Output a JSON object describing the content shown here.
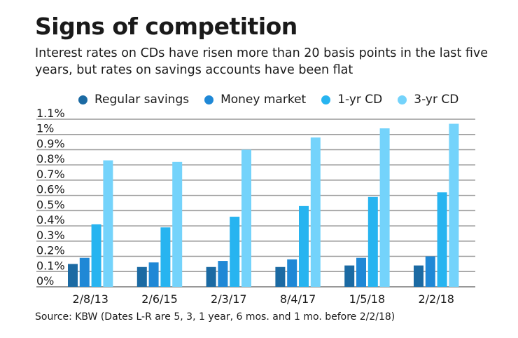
{
  "chart_data": {
    "type": "bar",
    "title": "Signs of competition",
    "subtitle": "Interest rates on CDs have risen more than 20 basis points in the last five years, but rates on savings accounts have been flat",
    "categories": [
      "2/8/13",
      "2/6/15",
      "2/3/17",
      "8/4/17",
      "1/5/18",
      "2/2/18"
    ],
    "series": [
      {
        "name": "Regular savings",
        "color": "#1b6aa3",
        "values": [
          0.15,
          0.13,
          0.13,
          0.13,
          0.14,
          0.14
        ]
      },
      {
        "name": "Money market",
        "color": "#1f88d6",
        "values": [
          0.19,
          0.16,
          0.17,
          0.18,
          0.19,
          0.2
        ]
      },
      {
        "name": "1-yr CD",
        "color": "#27b4f0",
        "values": [
          0.41,
          0.39,
          0.46,
          0.53,
          0.59,
          0.62
        ]
      },
      {
        "name": "3-yr CD",
        "color": "#74d3fb",
        "values": [
          0.83,
          0.82,
          0.9,
          0.98,
          1.04,
          1.07
        ]
      }
    ],
    "yticks": [
      "0%",
      "0.1%",
      "0.2%",
      "0.3%",
      "0.4%",
      "0.5%",
      "0.6%",
      "0.7%",
      "0.8%",
      "0.9%",
      "1%",
      "1.1%"
    ],
    "ylim": [
      0,
      1.1
    ],
    "yunit": "%",
    "grid": true,
    "legend": "top",
    "source": "Source: KBW (Dates L-R are 5, 3, 1 year, 6 mos. and 1 mo. before 2/2/18)"
  }
}
